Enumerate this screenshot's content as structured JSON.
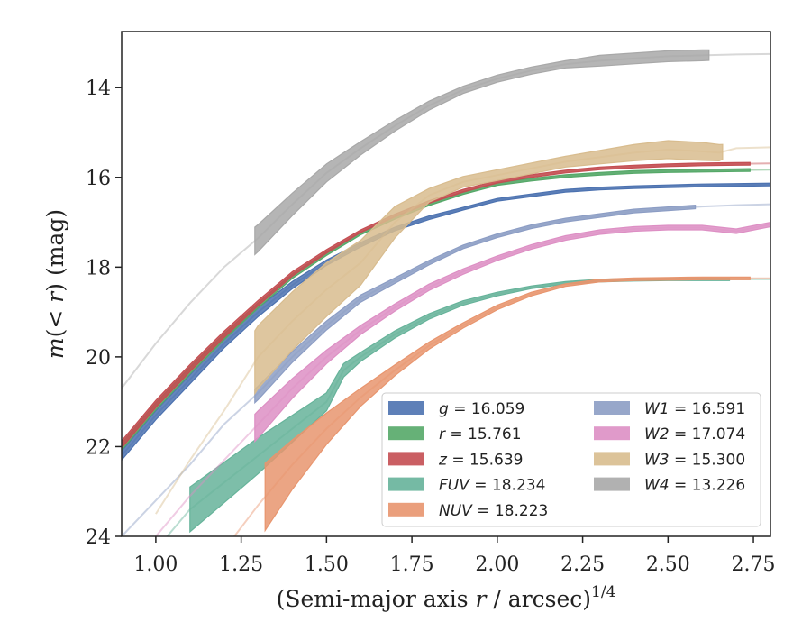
{
  "chart_data": {
    "type": "line",
    "xlabel_html": [
      "(Semi-major axis ",
      "r",
      " / arcsec)",
      "1/4"
    ],
    "ylabel_parts": [
      "m",
      "(< ",
      "r",
      ") (mag)"
    ],
    "xlim": [
      0.9,
      2.8
    ],
    "ylim": [
      24,
      12.75
    ],
    "y_inverted": true,
    "grid": false,
    "legend_position": "lower-right",
    "x_ticks": [
      "1.00",
      "1.25",
      "1.50",
      "1.75",
      "2.00",
      "2.25",
      "2.50",
      "2.75"
    ],
    "x_tick_values": [
      1.0,
      1.25,
      1.5,
      1.75,
      2.0,
      2.25,
      2.5,
      2.75
    ],
    "y_ticks": [
      "14",
      "16",
      "18",
      "20",
      "22",
      "24"
    ],
    "y_tick_values": [
      14,
      16,
      18,
      20,
      22,
      24
    ],
    "series": [
      {
        "name": "g",
        "legend_label": "g = 16.059",
        "color": "#4C72B0",
        "x": [
          0.9,
          1.0,
          1.1,
          1.2,
          1.3,
          1.4,
          1.5,
          1.6,
          1.7,
          1.8,
          1.9,
          2.0,
          2.1,
          2.2,
          2.3,
          2.4,
          2.5,
          2.6,
          2.7,
          2.8
        ],
        "y": [
          22.2,
          21.3,
          20.5,
          19.7,
          19.0,
          18.4,
          17.9,
          17.5,
          17.15,
          16.9,
          16.7,
          16.5,
          16.4,
          16.3,
          16.25,
          16.22,
          16.2,
          16.18,
          16.17,
          16.16
        ],
        "band": [
          0.1,
          0.1,
          0.1,
          0.1,
          0.1,
          0.08,
          0.06,
          0.05,
          0.04,
          0.04,
          0.03,
          0.03,
          0.03,
          0.03,
          0.03,
          0.03,
          0.03,
          0.03,
          0.03,
          0.03
        ],
        "band_end": 2.8
      },
      {
        "name": "r",
        "legend_label": "r = 15.761",
        "color": "#55A868",
        "x": [
          0.9,
          1.0,
          1.1,
          1.2,
          1.3,
          1.4,
          1.5,
          1.6,
          1.7,
          1.8,
          1.9,
          2.0,
          2.1,
          2.2,
          2.3,
          2.4,
          2.5,
          2.6,
          2.7,
          2.8
        ],
        "y": [
          22.0,
          21.1,
          20.3,
          19.55,
          18.85,
          18.2,
          17.7,
          17.25,
          16.9,
          16.6,
          16.35,
          16.15,
          16.05,
          15.97,
          15.92,
          15.88,
          15.86,
          15.85,
          15.84,
          15.83
        ],
        "band": [
          0.08,
          0.08,
          0.08,
          0.07,
          0.06,
          0.05,
          0.04,
          0.03,
          0.03,
          0.03,
          0.03,
          0.03,
          0.03,
          0.03,
          0.03,
          0.03,
          0.03,
          0.03,
          0.03,
          0.03
        ],
        "band_end": 2.74
      },
      {
        "name": "z",
        "legend_label": "z = 15.639",
        "color": "#C44E52",
        "x": [
          0.9,
          1.0,
          1.1,
          1.2,
          1.3,
          1.4,
          1.5,
          1.6,
          1.7,
          1.8,
          1.9,
          2.0,
          2.1,
          2.2,
          2.3,
          2.4,
          2.5,
          2.6,
          2.7,
          2.8
        ],
        "y": [
          21.95,
          21.05,
          20.25,
          19.5,
          18.8,
          18.15,
          17.65,
          17.2,
          16.85,
          16.55,
          16.3,
          16.1,
          15.97,
          15.87,
          15.8,
          15.76,
          15.73,
          15.71,
          15.7,
          15.69
        ],
        "band": [
          0.08,
          0.08,
          0.08,
          0.07,
          0.06,
          0.05,
          0.04,
          0.03,
          0.03,
          0.03,
          0.03,
          0.03,
          0.03,
          0.03,
          0.03,
          0.03,
          0.03,
          0.03,
          0.03,
          0.03
        ],
        "band_end": 2.74
      },
      {
        "name": "FUV",
        "legend_label": "FUV = 18.234",
        "color": "#66B39A",
        "x": [
          0.9,
          1.0,
          1.1,
          1.2,
          1.3,
          1.4,
          1.5,
          1.55,
          1.6,
          1.7,
          1.8,
          1.9,
          2.0,
          2.1,
          2.2,
          2.3,
          2.4,
          2.5,
          2.6,
          2.7,
          2.8
        ],
        "y": [
          25.0,
          24.3,
          23.4,
          22.8,
          22.2,
          21.6,
          21.0,
          20.3,
          20.0,
          19.5,
          19.1,
          18.8,
          18.6,
          18.45,
          18.35,
          18.3,
          18.28,
          18.27,
          18.27,
          18.27,
          18.27
        ],
        "band": [
          0.5,
          0.5,
          0.5,
          0.45,
          0.4,
          0.3,
          0.2,
          0.15,
          0.1,
          0.08,
          0.06,
          0.05,
          0.04,
          0.03,
          0.03,
          0.03,
          0.03,
          0.03,
          0.03,
          0.03,
          0.03
        ],
        "band_start": 1.1,
        "band_end": 2.68
      },
      {
        "name": "NUV",
        "legend_label": "NUV = 18.223",
        "color": "#E8956E",
        "x": [
          1.2,
          1.3,
          1.4,
          1.5,
          1.6,
          1.7,
          1.8,
          1.9,
          2.0,
          2.1,
          2.2,
          2.3,
          2.4,
          2.5,
          2.6,
          2.7,
          2.8
        ],
        "y": [
          24.3,
          23.3,
          22.4,
          21.6,
          20.9,
          20.3,
          19.75,
          19.3,
          18.9,
          18.6,
          18.4,
          18.3,
          18.27,
          18.26,
          18.25,
          18.25,
          18.25
        ],
        "band": [
          0.9,
          0.8,
          0.55,
          0.35,
          0.2,
          0.12,
          0.08,
          0.06,
          0.05,
          0.04,
          0.03,
          0.03,
          0.03,
          0.03,
          0.03,
          0.03,
          0.03
        ],
        "band_start": 1.32,
        "band_end": 2.74
      },
      {
        "name": "W1",
        "legend_label": "W1 = 16.591",
        "color": "#8C9DC4",
        "x": [
          0.9,
          1.0,
          1.1,
          1.2,
          1.3,
          1.4,
          1.5,
          1.6,
          1.7,
          1.8,
          1.9,
          2.0,
          2.1,
          2.2,
          2.3,
          2.4,
          2.5,
          2.6,
          2.7,
          2.8
        ],
        "y": [
          24.0,
          23.2,
          22.4,
          21.5,
          20.8,
          20.0,
          19.3,
          18.7,
          18.3,
          17.9,
          17.55,
          17.3,
          17.1,
          16.95,
          16.85,
          16.75,
          16.7,
          16.65,
          16.62,
          16.6
        ],
        "band": [
          0.2,
          0.2,
          0.2,
          0.15,
          0.15,
          0.12,
          0.1,
          0.08,
          0.06,
          0.05,
          0.04,
          0.04,
          0.04,
          0.04,
          0.04,
          0.04,
          0.04,
          0.04,
          0.04,
          0.04
        ],
        "band_start": 1.29,
        "band_end": 2.58
      },
      {
        "name": "W2",
        "legend_label": "W2 = 17.074",
        "color": "#DD8FC4",
        "x": [
          0.9,
          1.0,
          1.1,
          1.2,
          1.3,
          1.4,
          1.5,
          1.6,
          1.7,
          1.8,
          1.9,
          2.0,
          2.1,
          2.2,
          2.3,
          2.4,
          2.5,
          2.6,
          2.7,
          2.8
        ],
        "y": [
          24.8,
          24.0,
          23.1,
          22.3,
          21.5,
          20.7,
          20.0,
          19.4,
          18.9,
          18.45,
          18.1,
          17.8,
          17.55,
          17.35,
          17.22,
          17.15,
          17.12,
          17.12,
          17.2,
          17.05
        ],
        "band": [
          0.3,
          0.3,
          0.3,
          0.3,
          0.3,
          0.22,
          0.15,
          0.1,
          0.08,
          0.07,
          0.06,
          0.05,
          0.05,
          0.05,
          0.05,
          0.05,
          0.05,
          0.05,
          0.05,
          0.05
        ],
        "band_start": 1.29,
        "band_end": 2.8
      },
      {
        "name": "W3",
        "legend_label": "W3 = 15.300",
        "color": "#D8BC8E",
        "x": [
          1.0,
          1.1,
          1.2,
          1.3,
          1.4,
          1.5,
          1.6,
          1.7,
          1.8,
          1.9,
          2.0,
          2.1,
          2.2,
          2.3,
          2.4,
          2.5,
          2.6,
          2.65,
          2.7,
          2.8
        ],
        "y": [
          23.5,
          22.3,
          21.2,
          20.0,
          19.2,
          18.5,
          17.9,
          17.0,
          16.4,
          16.1,
          15.95,
          15.8,
          15.65,
          15.55,
          15.45,
          15.38,
          15.42,
          15.45,
          15.35,
          15.33
        ],
        "band": [
          0.7,
          0.7,
          0.7,
          0.7,
          0.65,
          0.6,
          0.5,
          0.35,
          0.15,
          0.12,
          0.12,
          0.12,
          0.12,
          0.15,
          0.18,
          0.2,
          0.2,
          0.18,
          0.1,
          0.1
        ],
        "band_start": 1.29,
        "band_end": 2.66
      },
      {
        "name": "W4",
        "legend_label": "W4 = 13.226",
        "color": "#A8A8A8",
        "x": [
          0.9,
          1.0,
          1.1,
          1.2,
          1.3,
          1.4,
          1.5,
          1.6,
          1.7,
          1.8,
          1.9,
          2.0,
          2.1,
          2.2,
          2.3,
          2.4,
          2.5,
          2.6,
          2.7,
          2.8
        ],
        "y": [
          20.7,
          19.7,
          18.8,
          18.0,
          17.35,
          16.6,
          15.9,
          15.35,
          14.85,
          14.4,
          14.05,
          13.8,
          13.62,
          13.48,
          13.4,
          13.35,
          13.3,
          13.28,
          13.26,
          13.25
        ],
        "band": [
          0.35,
          0.35,
          0.35,
          0.35,
          0.3,
          0.25,
          0.2,
          0.15,
          0.12,
          0.1,
          0.08,
          0.08,
          0.08,
          0.08,
          0.12,
          0.12,
          0.12,
          0.12,
          0.1,
          0.1
        ],
        "band_start": 1.29,
        "band_end": 2.62
      }
    ]
  }
}
